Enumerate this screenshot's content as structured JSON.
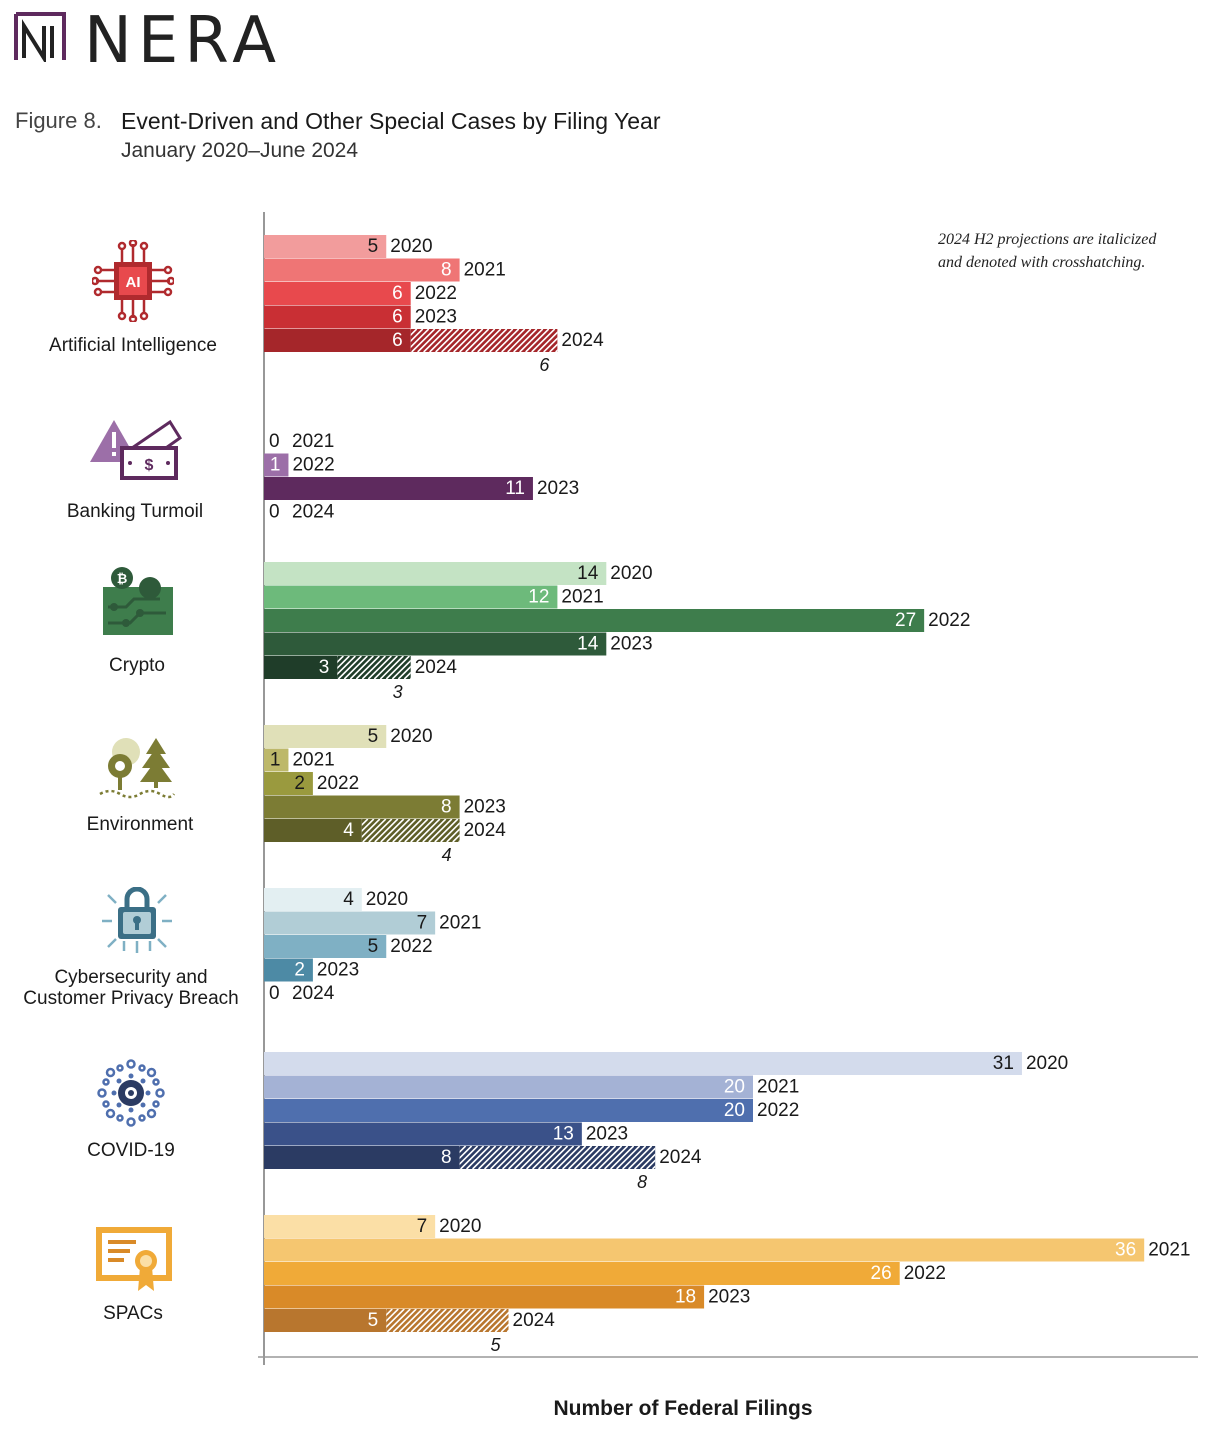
{
  "header": {
    "brand": "NERA",
    "figure_label": "Figure 8.",
    "title": "Event-Driven and Other Special Cases by Filing Year",
    "subtitle": "January 2020–June 2024",
    "note_line1": "2024 H2 projections are italicized",
    "note_line2": "and denoted with crosshatching."
  },
  "colors": {
    "ai": [
      "#f29c9c",
      "#ef7575",
      "#e8494d",
      "#c92f34",
      "#a5262a"
    ],
    "banking": [
      "#c9b1cf",
      "#9c6fa8",
      "#5e2a5e",
      "#5e2a5e"
    ],
    "crypto": [
      "#c4e3c4",
      "#6dba7b",
      "#3e7d4c",
      "#2e5a3a",
      "#1f3d29"
    ],
    "environment": [
      "#e0e0b8",
      "#bdb86a",
      "#9a9a3e",
      "#7c7c34",
      "#5e5e28"
    ],
    "cyber": [
      "#e3eff2",
      "#b1cdd6",
      "#7fb0c4",
      "#4d8aa5",
      "#3b6f86"
    ],
    "covid": [
      "#d3dbec",
      "#a4b2d5",
      "#4f6fae",
      "#3a5189",
      "#2b3b63"
    ],
    "spacs": [
      "#fbdfa6",
      "#f5c670",
      "#f0aa38",
      "#d98a28",
      "#b8762e"
    ]
  },
  "chart_data": {
    "type": "bar",
    "orientation": "horizontal",
    "xlabel": "Number of Federal Filings",
    "xlim": [
      0,
      36
    ],
    "groups": [
      {
        "name": "Artificial Intelligence",
        "key": "ai",
        "bars": [
          {
            "year": "2020",
            "value": 5
          },
          {
            "year": "2021",
            "value": 8
          },
          {
            "year": "2022",
            "value": 6
          },
          {
            "year": "2023",
            "value": 6
          },
          {
            "year": "2024",
            "value": 6,
            "projection": 6
          }
        ]
      },
      {
        "name": "Banking Turmoil",
        "key": "banking",
        "bars": [
          {
            "year": "2021",
            "value": 0
          },
          {
            "year": "2022",
            "value": 1
          },
          {
            "year": "2023",
            "value": 11
          },
          {
            "year": "2024",
            "value": 0
          }
        ]
      },
      {
        "name": "Crypto",
        "key": "crypto",
        "bars": [
          {
            "year": "2020",
            "value": 14
          },
          {
            "year": "2021",
            "value": 12
          },
          {
            "year": "2022",
            "value": 27
          },
          {
            "year": "2023",
            "value": 14
          },
          {
            "year": "2024",
            "value": 3,
            "projection": 3
          }
        ]
      },
      {
        "name": "Environment",
        "key": "environment",
        "bars": [
          {
            "year": "2020",
            "value": 5
          },
          {
            "year": "2021",
            "value": 1
          },
          {
            "year": "2022",
            "value": 2
          },
          {
            "year": "2023",
            "value": 8
          },
          {
            "year": "2024",
            "value": 4,
            "projection": 4
          }
        ]
      },
      {
        "name": "Cybersecurity and Customer Privacy Breach",
        "label_lines": [
          "Cybersecurity and",
          "Customer Privacy Breach"
        ],
        "key": "cyber",
        "bars": [
          {
            "year": "2020",
            "value": 4
          },
          {
            "year": "2021",
            "value": 7
          },
          {
            "year": "2022",
            "value": 5
          },
          {
            "year": "2023",
            "value": 2
          },
          {
            "year": "2024",
            "value": 0
          }
        ]
      },
      {
        "name": "COVID-19",
        "key": "covid",
        "bars": [
          {
            "year": "2020",
            "value": 31
          },
          {
            "year": "2021",
            "value": 20
          },
          {
            "year": "2022",
            "value": 20
          },
          {
            "year": "2023",
            "value": 13
          },
          {
            "year": "2024",
            "value": 8,
            "projection": 8
          }
        ]
      },
      {
        "name": "SPACs",
        "key": "spacs",
        "bars": [
          {
            "year": "2020",
            "value": 7
          },
          {
            "year": "2021",
            "value": 36
          },
          {
            "year": "2022",
            "value": 26
          },
          {
            "year": "2023",
            "value": 18
          },
          {
            "year": "2024",
            "value": 5,
            "projection": 5
          }
        ]
      }
    ]
  }
}
